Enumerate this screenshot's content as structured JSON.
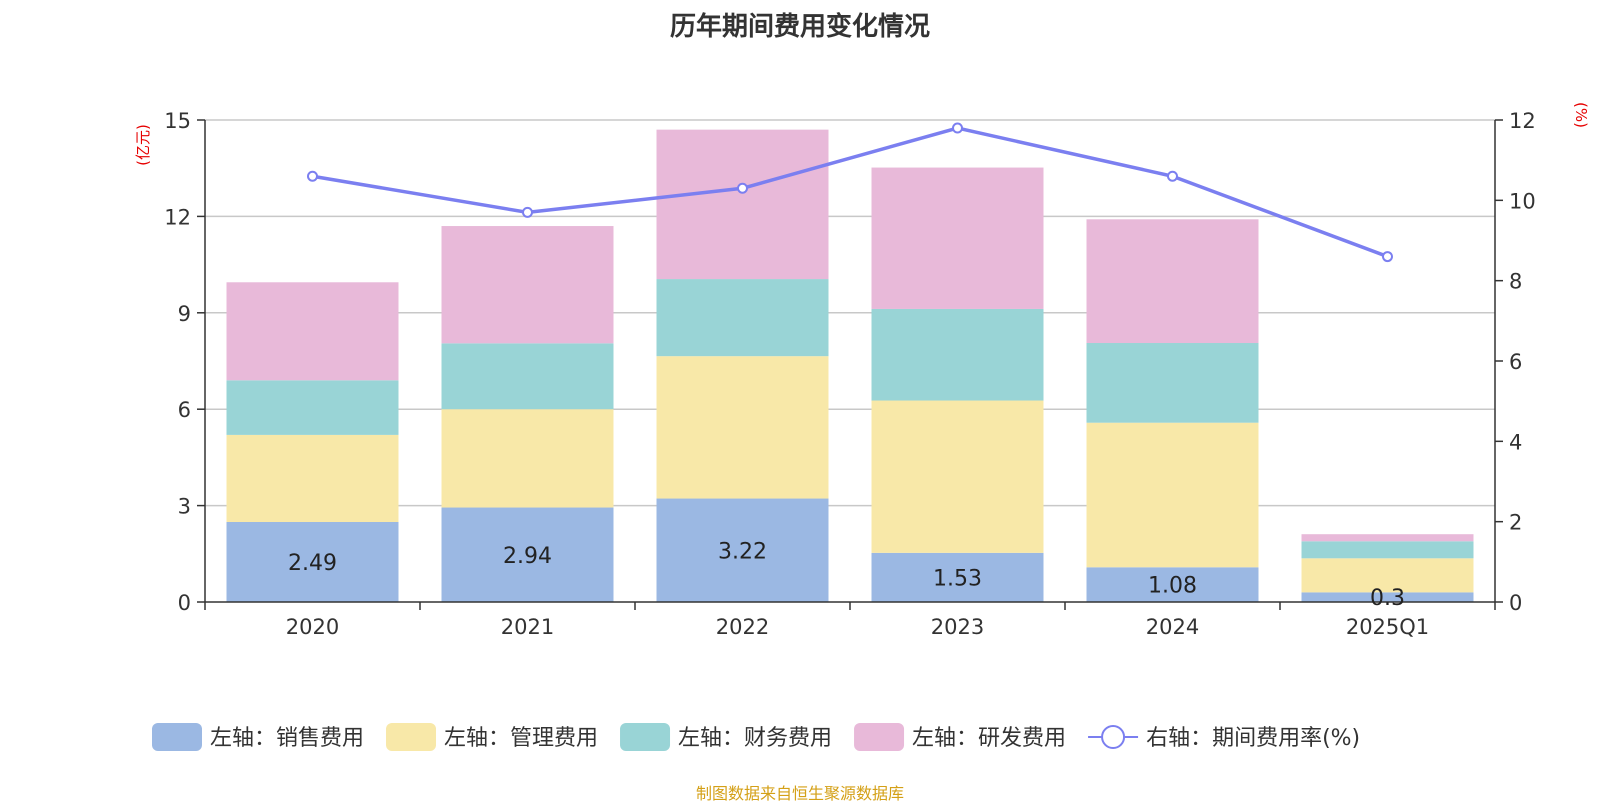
{
  "title": "历年期间费用变化情况",
  "source": "制图数据来自恒生聚源数据库",
  "colors": {
    "sales": "#9bb8e3",
    "admin": "#f8e8a8",
    "finance": "#99d4d6",
    "rnd": "#e8b9d9",
    "rate": "#7b7ff0",
    "grid": "#c8c8c8",
    "axis_unit": "#e60000"
  },
  "chart_data": {
    "type": "bar",
    "stacked": true,
    "categories": [
      "2020",
      "2021",
      "2022",
      "2023",
      "2024",
      "2025Q1"
    ],
    "left_axis": {
      "label": "(亿元)",
      "ylim": [
        0,
        15
      ],
      "ticks": [
        "0",
        "3",
        "6",
        "9",
        "12",
        "15"
      ]
    },
    "right_axis": {
      "label": "(%)",
      "ylim": [
        0,
        12
      ],
      "ticks": [
        "0",
        "2",
        "4",
        "6",
        "8",
        "10",
        "12"
      ]
    },
    "series": [
      {
        "key": "sales",
        "name": "左轴：销售费用",
        "axis": "left",
        "type": "bar",
        "values": [
          2.49,
          2.94,
          3.22,
          1.53,
          1.08,
          0.3
        ],
        "labels": [
          "2.49",
          "2.94",
          "3.22",
          "1.53",
          "1.08",
          "0.3"
        ]
      },
      {
        "key": "admin",
        "name": "左轴：管理费用",
        "axis": "left",
        "type": "bar",
        "values": [
          2.71,
          3.06,
          4.43,
          4.74,
          4.5,
          1.06
        ]
      },
      {
        "key": "finance",
        "name": "左轴：财务费用",
        "axis": "left",
        "type": "bar",
        "values": [
          1.7,
          2.05,
          2.4,
          2.85,
          2.48,
          0.53
        ]
      },
      {
        "key": "rnd",
        "name": "左轴：研发费用",
        "axis": "left",
        "type": "bar",
        "values": [
          3.05,
          3.65,
          4.65,
          4.4,
          3.85,
          0.22
        ]
      },
      {
        "key": "rate",
        "name": "右轴：期间费用率(%)",
        "axis": "right",
        "type": "line",
        "values": [
          10.6,
          9.7,
          10.3,
          11.8,
          10.6,
          8.6
        ]
      }
    ],
    "grid": true,
    "legend_position": "bottom"
  }
}
